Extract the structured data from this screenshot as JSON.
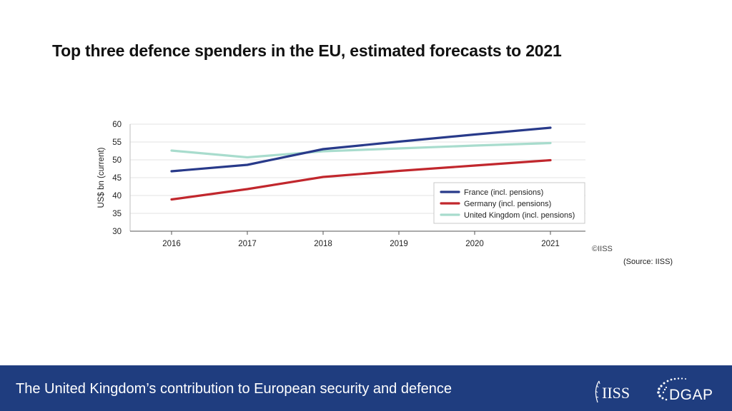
{
  "slide": {
    "title": "Top three defence spenders in the EU, estimated forecasts to 2021",
    "copyright": "©IISS",
    "source": "(Source:  IISS)"
  },
  "footer": {
    "title": "The United Kingdom’s contribution to European security and defence",
    "logo_iiss": "IISS",
    "logo_dgap": "DGAP",
    "background": "#1f3d7f"
  },
  "chart_data": {
    "type": "line",
    "title": "",
    "xlabel": "",
    "ylabel": "US$ bn (current)",
    "x": [
      "2016",
      "2017",
      "2018",
      "2019",
      "2020",
      "2021"
    ],
    "ylim": [
      30,
      60
    ],
    "yticks": [
      30,
      35,
      40,
      45,
      50,
      55,
      60
    ],
    "grid": true,
    "legend_position": "bottom-right",
    "series": [
      {
        "name": "France (incl. pensions)",
        "color": "#283a8a",
        "values": [
          46.8,
          48.6,
          53.0,
          55.1,
          57.1,
          59.0
        ]
      },
      {
        "name": "Germany (incl. pensions)",
        "color": "#c1272d",
        "values": [
          38.9,
          41.8,
          45.2,
          46.9,
          48.4,
          49.9
        ]
      },
      {
        "name": "United Kingdom (incl. pensions)",
        "color": "#a8dccd",
        "values": [
          52.6,
          50.7,
          52.4,
          53.2,
          54.0,
          54.7
        ]
      }
    ]
  }
}
